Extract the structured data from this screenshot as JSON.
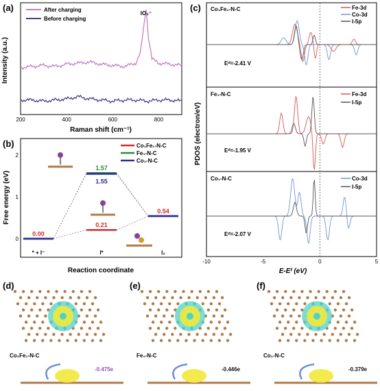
{
  "panel_labels": [
    "(a)",
    "(b)",
    "(c)",
    "(d)",
    "(e)",
    "(f)"
  ],
  "chart_data": [
    {
      "panel": "(a)",
      "type": "line",
      "xlabel": "Raman shift (cm⁻¹)",
      "ylabel": "Intensity (a.u.)",
      "xlim": [
        200,
        900
      ],
      "xticks": [
        "200",
        "400",
        "600",
        "800"
      ],
      "annotation": "IO₃⁻",
      "annotation_x": 745,
      "legend_position": "top-left",
      "series": [
        {
          "name": "After charging",
          "color": "#c77fc0",
          "x": [
            200,
            250,
            300,
            350,
            400,
            450,
            500,
            550,
            600,
            650,
            700,
            720,
            735,
            745,
            755,
            770,
            800,
            850,
            900
          ],
          "y": [
            0.42,
            0.43,
            0.44,
            0.43,
            0.45,
            0.46,
            0.47,
            0.45,
            0.44,
            0.43,
            0.46,
            0.55,
            0.78,
            0.95,
            0.7,
            0.5,
            0.46,
            0.45,
            0.44
          ]
        },
        {
          "name": "Before charging",
          "color": "#4b3f8f",
          "x": [
            200,
            250,
            300,
            350,
            400,
            450,
            500,
            550,
            600,
            650,
            700,
            750,
            800,
            850,
            900
          ],
          "y": [
            0.13,
            0.13,
            0.12,
            0.13,
            0.14,
            0.16,
            0.14,
            0.13,
            0.12,
            0.13,
            0.13,
            0.12,
            0.13,
            0.13,
            0.12
          ]
        }
      ]
    },
    {
      "panel": "(b)",
      "type": "line",
      "xlabel": "Reaction coordinate",
      "ylabel": "Free energy (eV)",
      "ylim": [
        0,
        2
      ],
      "yticks": [
        "0",
        "1",
        "2"
      ],
      "categories": [
        "* + I⁻",
        "I*",
        "I₂"
      ],
      "legend_position": "top-right",
      "series": [
        {
          "name": "Co₁Fe₁-N-C",
          "color": "#d42b2b",
          "values": [
            0.0,
            0.21,
            0.54
          ],
          "labels": [
            "0.00",
            "0.21",
            "0.54"
          ]
        },
        {
          "name": "Fe₁-N-C",
          "color": "#2e8b2e",
          "values": [
            0.0,
            1.57,
            0.54
          ],
          "labels": [
            "",
            "1.57",
            ""
          ]
        },
        {
          "name": "Co₁-N-C",
          "color": "#2d2d9e",
          "values": [
            0.0,
            1.55,
            0.54
          ],
          "labels": [
            "",
            "1.55",
            ""
          ]
        }
      ]
    },
    {
      "panel": "(c)",
      "type": "line",
      "xlabel": "E-Eᶠ (eV)",
      "ylabel": "PDOS (electron/eV)",
      "xlim": [
        -10,
        5
      ],
      "xticks": [
        "-10",
        "-5",
        "0",
        "5"
      ],
      "subplots": [
        {
          "title": "Co₁Fe₁-N-C",
          "annotation": "Eᵈ=-2.41 V",
          "legend": [
            {
              "name": "Fe-3d",
              "color": "#e05252"
            },
            {
              "name": "Co-3d",
              "color": "#6f95d6"
            },
            {
              "name": "I-5p",
              "color": "#555555"
            }
          ]
        },
        {
          "title": "Fe₁-N-C",
          "annotation": "Eᵈ=-1.95 V",
          "legend": [
            {
              "name": "Fe-3d",
              "color": "#e05252"
            },
            {
              "name": "I-5p",
              "color": "#555555"
            }
          ]
        },
        {
          "title": "Co₁-N-C",
          "annotation": "Eᵈ=-2.07 V",
          "legend": [
            {
              "name": "Co-3d",
              "color": "#6f95d6"
            },
            {
              "name": "I-5p",
              "color": "#555555"
            }
          ]
        }
      ]
    }
  ],
  "structures": [
    {
      "panel": "(d)",
      "name": "Co₁Fe₁-N-C",
      "charge": "-0.475e",
      "charge_color": "#9b4fc0"
    },
    {
      "panel": "(e)",
      "name": "Fe₁-N-C",
      "charge": "-0.446e",
      "charge_color": "#111111"
    },
    {
      "panel": "(f)",
      "name": "Co₁-N-C",
      "charge": "-0.379e",
      "charge_color": "#111111"
    }
  ],
  "colors": {
    "carbon": "#b07a4a",
    "iodine": "#8a3fa0",
    "cdd_yellow": "#f2e93a",
    "cdd_cyan": "#4fd1c9"
  }
}
